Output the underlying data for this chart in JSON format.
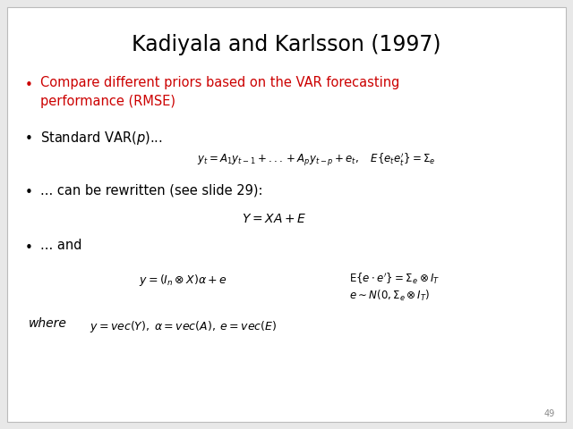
{
  "title": "Kadiyala and Karlsson (1997)",
  "background_color": "#e8e8e8",
  "slide_bg": "#ffffff",
  "title_fontsize": 17,
  "title_color": "#000000",
  "bullet_color": "#cc0000",
  "text_color": "#000000",
  "page_number": "49",
  "eq1": "$y_t = A_1 y_{t-1} + ... + A_p y_{t-p} + e_t, \\quad E\\{e_t e_t'\\} = \\Sigma_e$",
  "eq2": "$Y = XA + E$",
  "eq3": "$y = (I_n \\otimes X)\\alpha + e$",
  "eq4": "$\\mathrm{E}\\{e \\cdot e'\\} = \\Sigma_e \\otimes I_T$",
  "eq5": "$e \\sim N(0, \\Sigma_e \\otimes I_T)$",
  "where_label": "where",
  "eq6": "$y = vec(Y), \\; \\alpha = vec(A), \\; e = vec(E)$"
}
